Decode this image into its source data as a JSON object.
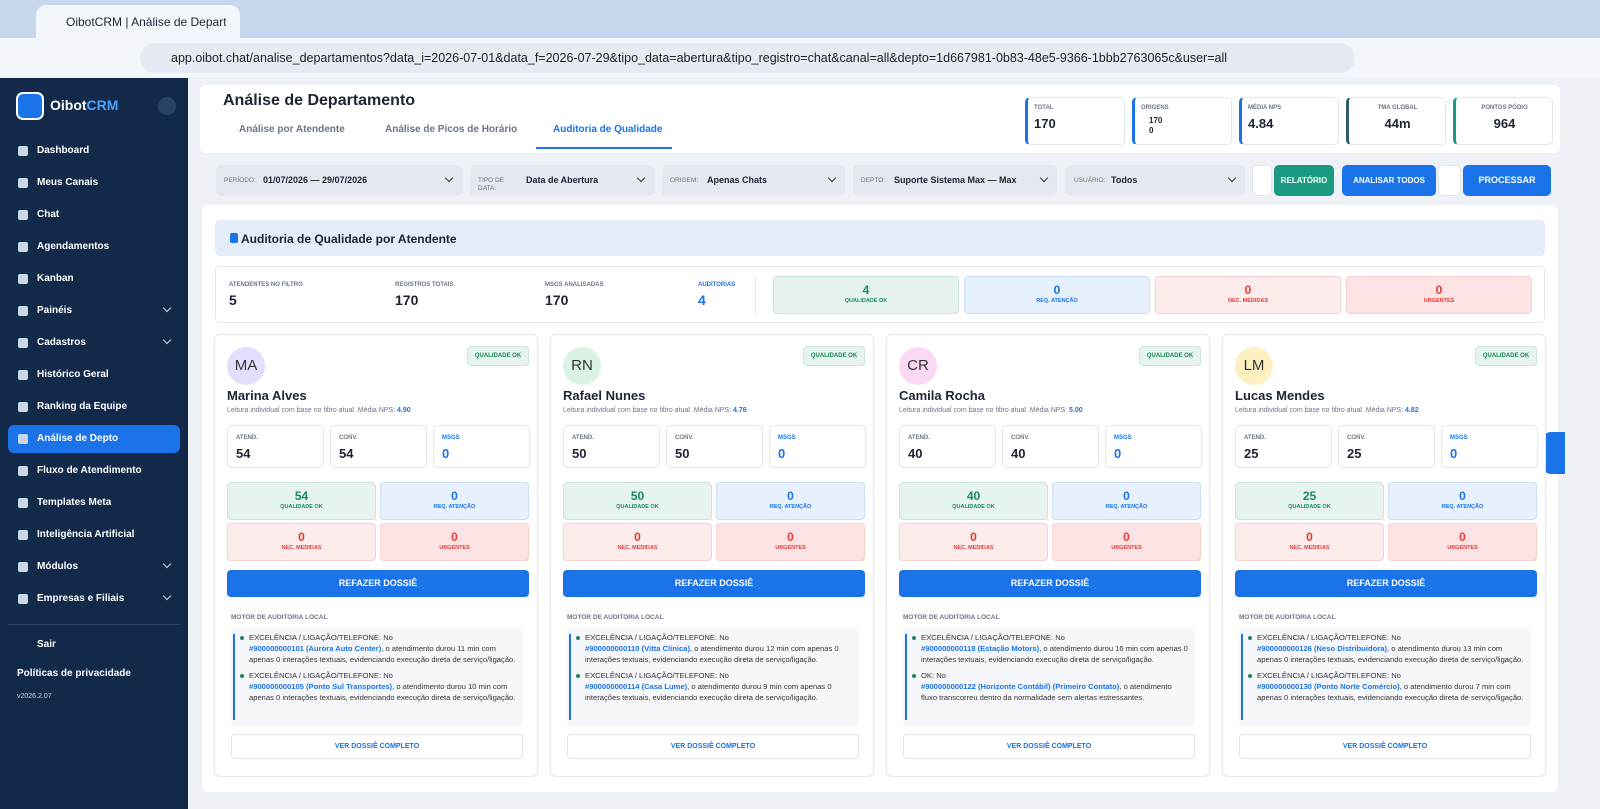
{
  "browser": {
    "tab_title": "OibotCRM | Análise de Departa",
    "url": "app.oibot.chat/analise_departamentos?data_i=2026-07-01&data_f=2026-07-29&tipo_data=abertura&tipo_registro=chat&canal=all&depto=1d667981-0b83-48e5-9366-1bbb2763065c&user=all"
  },
  "sidebar": {
    "brand": {
      "main": "Oibot",
      "accent": "CRM"
    },
    "menu": [
      "Dashboard",
      "Meus Canais",
      "Chat",
      "Agendamentos",
      "Kanban",
      "Painéis",
      "Cadastros",
      "Histórico Geral",
      "Ranking da Equipe",
      "Análise de Depto",
      "Fluxo de Atendimento",
      "Templates Meta",
      "Inteligência Artificial",
      "Módulos",
      "Empresas e Filiais"
    ],
    "logout": "Sair",
    "privacy": "Políticas de privacidade",
    "version": "v2026.2.07"
  },
  "header": {
    "title": "Análise de Departamento",
    "tabs": [
      "Análise por Atendente",
      "Análise de Picos de Horário",
      "Auditoria de Qualidade"
    ],
    "stats": [
      {
        "label": "TOTAL",
        "value": "170"
      },
      {
        "label": "ORIGENS",
        "values": [
          "170",
          "0"
        ]
      },
      {
        "label": "MÉDIA NPS",
        "value": "4.84"
      },
      {
        "label": "TMA GLOBAL",
        "value": "44m"
      },
      {
        "label": "PONTOS PÓDIO",
        "value": "964"
      }
    ]
  },
  "filters": {
    "fields": [
      {
        "label": "PERÍODO:",
        "value": "01/07/2026 — 29/07/2026"
      },
      {
        "label": "TIPO DE DATA:",
        "value": "Data de Abertura"
      },
      {
        "label": "ORIGEM:",
        "value": "Apenas Chats"
      },
      {
        "label": "DEPTO:",
        "value": "Suporte Sistema Max — Max"
      },
      {
        "label": "USUÁRIO:",
        "value": "Todos"
      }
    ],
    "report": "RELATÓRIO",
    "analyze_all": "ANALISAR TODOS",
    "process": "PROCESSAR"
  },
  "audit": {
    "title": "Auditoria de Qualidade por Atendente",
    "summary": [
      {
        "label": "ATENDENTES NO FILTRO",
        "value": "5"
      },
      {
        "label": "REGISTROS TOTAIS",
        "value": "170"
      },
      {
        "label": "MSGS ANALISADAS",
        "value": "170"
      },
      {
        "label": "AUDITORIAS",
        "value": "4"
      }
    ],
    "badges": [
      {
        "value": "4",
        "label": "QUALIDADE OK"
      },
      {
        "value": "0",
        "label": "REQ. ATENÇÃO"
      },
      {
        "value": "0",
        "label": "NEC. MEDIDAS"
      },
      {
        "value": "0",
        "label": "URGENTES"
      }
    ],
    "agents": [
      {
        "initials": "MA",
        "name": "Marina Alves",
        "status": "QUALIDADE OK",
        "subtitle": "Leitura individual com base no filtro atual. Média NPS:",
        "nps": "4.90",
        "stats": [
          {
            "label": "ATEND.",
            "value": "54"
          },
          {
            "label": "CONV.",
            "value": "54"
          },
          {
            "label": "MSGS",
            "value": "0"
          }
        ],
        "quality": [
          {
            "value": "54",
            "label": "QUALIDADE OK"
          },
          {
            "value": "0",
            "label": "REQ. ATENÇÃO"
          },
          {
            "value": "0",
            "label": "NEC. MEDIDAS"
          },
          {
            "value": "0",
            "label": "URGENTES"
          }
        ],
        "button": "REFAZER DOSSIÊ",
        "engine_title": "MOTOR DE AUDITORIA LOCAL",
        "entries": [
          {
            "head": "EXCELÊNCIA / LIGAÇÃO/TELEFONE: No",
            "link": "#900000000101 (Aurora Auto Center)",
            "text": ", o atendimento durou 11 min com apenas 0 interações textuais, evidenciando execução direta de serviço/ligação."
          },
          {
            "head": "EXCELÊNCIA / LIGAÇÃO/TELEFONE: No",
            "link": "#900000000105 (Ponto Sul Transportes)",
            "text": ", o atendimento durou 10 min com apenas 0 interações textuais, evidenciando execução direta de serviço/ligação."
          }
        ],
        "footer": "VER DOSSIÊ COMPLETO"
      },
      {
        "initials": "RN",
        "name": "Rafael Nunes",
        "status": "QUALIDADE OK",
        "subtitle": "Leitura individual com base no filtro atual. Média NPS:",
        "nps": "4.76",
        "stats": [
          {
            "label": "ATEND.",
            "value": "50"
          },
          {
            "label": "CONV.",
            "value": "50"
          },
          {
            "label": "MSGS",
            "value": "0"
          }
        ],
        "quality": [
          {
            "value": "50",
            "label": "QUALIDADE OK"
          },
          {
            "value": "0",
            "label": "REQ. ATENÇÃO"
          },
          {
            "value": "0",
            "label": "NEC. MEDIDAS"
          },
          {
            "value": "0",
            "label": "URGENTES"
          }
        ],
        "button": "REFAZER DOSSIÊ",
        "engine_title": "MOTOR DE AUDITORIA LOCAL",
        "entries": [
          {
            "head": "EXCELÊNCIA / LIGAÇÃO/TELEFONE: No",
            "link": "#900000000110 (Vitta Clínica)",
            "text": ", o atendimento durou 12 min com apenas 0 interações textuais, evidenciando execução direta de serviço/ligação."
          },
          {
            "head": "EXCELÊNCIA / LIGAÇÃO/TELEFONE: No",
            "link": "#900000000114 (Casa Lume)",
            "text": ", o atendimento durou 9 min com apenas 0 interações textuais, evidenciando execução direta de serviço/ligação."
          }
        ],
        "footer": "VER DOSSIÊ COMPLETO"
      },
      {
        "initials": "CR",
        "name": "Camila Rocha",
        "status": "QUALIDADE OK",
        "subtitle": "Leitura individual com base no filtro atual. Média NPS:",
        "nps": "5.00",
        "stats": [
          {
            "label": "ATEND.",
            "value": "40"
          },
          {
            "label": "CONV.",
            "value": "40"
          },
          {
            "label": "MSGS",
            "value": "0"
          }
        ],
        "quality": [
          {
            "value": "40",
            "label": "QUALIDADE OK"
          },
          {
            "value": "0",
            "label": "REQ. ATENÇÃO"
          },
          {
            "value": "0",
            "label": "NEC. MEDIDAS"
          },
          {
            "value": "0",
            "label": "URGENTES"
          }
        ],
        "button": "REFAZER DOSSIÊ",
        "engine_title": "MOTOR DE AUDITORIA LOCAL",
        "entries": [
          {
            "head": "EXCELÊNCIA / LIGAÇÃO/TELEFONE: No",
            "link": "#900000000118 (Estação Motors)",
            "text": ", o atendimento durou 16 min com apenas 0 interações textuais, evidenciando execução direta de serviço/ligação."
          },
          {
            "head": "OK: No",
            "link": "#900000000122 (Horizonte Contábil) (Primeiro Contato)",
            "text": ", o atendimento fluxo transcorreu dentro da normalidade sem alertas estressantes."
          }
        ],
        "footer": "VER DOSSIÊ COMPLETO"
      },
      {
        "initials": "LM",
        "name": "Lucas Mendes",
        "status": "QUALIDADE OK",
        "subtitle": "Leitura individual com base no filtro atual. Média NPS:",
        "nps": "4.82",
        "stats": [
          {
            "label": "ATEND.",
            "value": "25"
          },
          {
            "label": "CONV.",
            "value": "25"
          },
          {
            "label": "MSGS",
            "value": "0"
          }
        ],
        "quality": [
          {
            "value": "25",
            "label": "QUALIDADE OK"
          },
          {
            "value": "0",
            "label": "REQ. ATENÇÃO"
          },
          {
            "value": "0",
            "label": "NEC. MEDIDAS"
          },
          {
            "value": "0",
            "label": "URGENTES"
          }
        ],
        "button": "REFAZER DOSSIÊ",
        "engine_title": "MOTOR DE AUDITORIA LOCAL",
        "entries": [
          {
            "head": "EXCELÊNCIA / LIGAÇÃO/TELEFONE: No",
            "link": "#900000000126 (Neso Distribuidora)",
            "text": ", o atendimento durou 13 min com apenas 0 interações textuais, evidenciando execução direta de serviço/ligação."
          },
          {
            "head": "EXCELÊNCIA / LIGAÇÃO/TELEFONE: No",
            "link": "#900000000130 (Ponto Norte Comércio)",
            "text": ", o atendimento durou 7 min com apenas 0 interações textuais, evidenciando execução direta de serviço/ligação."
          }
        ],
        "footer": "VER DOSSIÊ COMPLETO"
      }
    ]
  }
}
